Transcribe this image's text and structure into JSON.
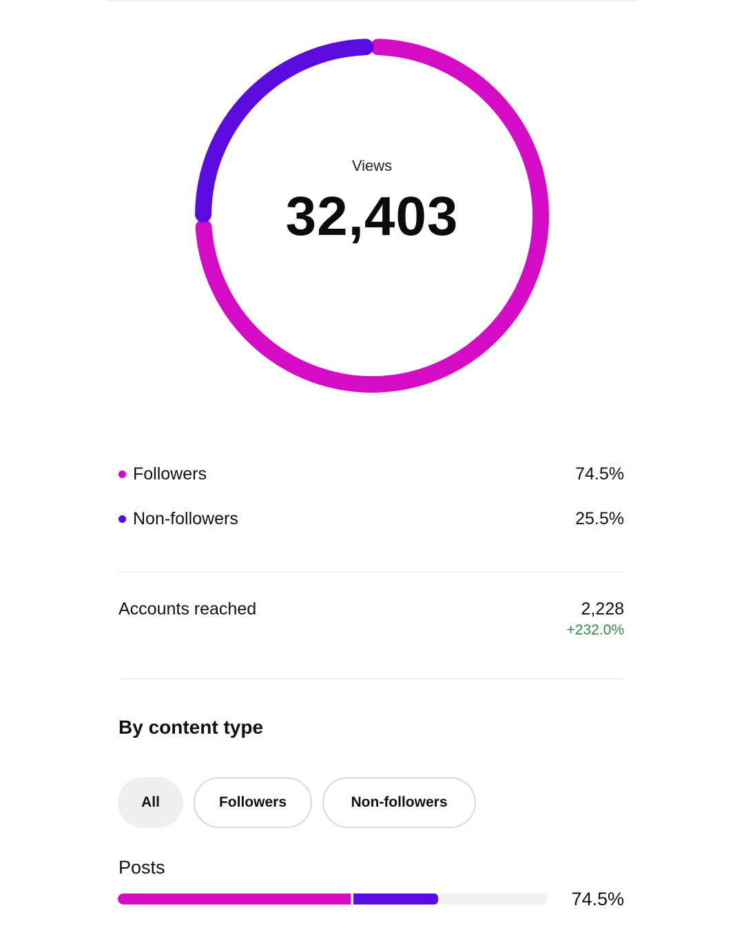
{
  "views": {
    "label": "Views",
    "value": "32,403"
  },
  "colors": {
    "followers": "#d40cc5",
    "non_followers": "#5a0bdf",
    "positive": "#2f8a4a",
    "track": "#f1f1f4"
  },
  "legend": [
    {
      "label": "Followers",
      "value": "74.5%",
      "share": 74.5
    },
    {
      "label": "Non-followers",
      "value": "25.5%",
      "share": 25.5
    }
  ],
  "accounts_reached": {
    "label": "Accounts reached",
    "value": "2,228",
    "change": "+232.0%"
  },
  "by_content_type": {
    "title": "By content type",
    "filters": [
      {
        "label": "All",
        "selected": true
      },
      {
        "label": "Followers",
        "selected": false
      },
      {
        "label": "Non-followers",
        "selected": false
      }
    ],
    "rows": [
      {
        "label": "Posts",
        "value": "74.5%",
        "total_fraction": 0.745,
        "followers_fraction": 0.545,
        "non_followers_fraction": 0.2
      }
    ]
  }
}
